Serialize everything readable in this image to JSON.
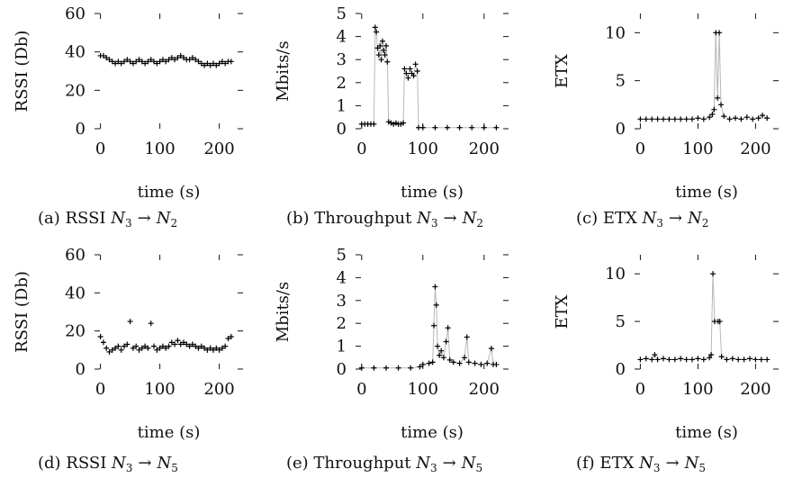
{
  "figure": {
    "panels": [
      {
        "id": "a",
        "caption_prefix": "(a) RSSI ",
        "caption_from": "N",
        "caption_from_sub": "3",
        "caption_arrow": "→",
        "caption_to": "N",
        "caption_to_sub": "2"
      },
      {
        "id": "b",
        "caption_prefix": "(b) Throughput ",
        "caption_from": "N",
        "caption_from_sub": "3",
        "caption_arrow": "→",
        "caption_to": "N",
        "caption_to_sub": "2"
      },
      {
        "id": "c",
        "caption_prefix": "(c) ETX ",
        "caption_from": "N",
        "caption_from_sub": "3",
        "caption_arrow": "→",
        "caption_to": "N",
        "caption_to_sub": "2"
      },
      {
        "id": "d",
        "caption_prefix": "(d) RSSI ",
        "caption_from": "N",
        "caption_from_sub": "3",
        "caption_arrow": "→",
        "caption_to": "N",
        "caption_to_sub": "5"
      },
      {
        "id": "e",
        "caption_prefix": "(e) Throughput ",
        "caption_from": "N",
        "caption_from_sub": "3",
        "caption_arrow": "→",
        "caption_to": "N",
        "caption_to_sub": "5"
      },
      {
        "id": "f",
        "caption_prefix": "(f) ETX ",
        "caption_from": "N",
        "caption_from_sub": "3",
        "caption_arrow": "→",
        "caption_to": "N",
        "caption_to_sub": "5"
      }
    ]
  },
  "chart_data": [
    {
      "type": "scatter",
      "xlabel": "time (s)",
      "ylabel": "RSSI (Db)",
      "xlim": [
        -10,
        240
      ],
      "ylim": [
        0,
        60
      ],
      "xticks": [
        0,
        100,
        200
      ],
      "yticks": [
        0,
        20,
        40,
        60
      ],
      "connected": false,
      "points": [
        [
          0,
          38
        ],
        [
          5,
          38
        ],
        [
          10,
          37
        ],
        [
          15,
          36
        ],
        [
          20,
          35
        ],
        [
          25,
          34
        ],
        [
          30,
          35
        ],
        [
          35,
          34
        ],
        [
          40,
          35
        ],
        [
          45,
          36
        ],
        [
          50,
          35
        ],
        [
          55,
          34
        ],
        [
          60,
          35
        ],
        [
          65,
          36
        ],
        [
          70,
          35
        ],
        [
          75,
          34
        ],
        [
          80,
          35
        ],
        [
          85,
          36
        ],
        [
          90,
          35
        ],
        [
          95,
          34
        ],
        [
          100,
          35
        ],
        [
          105,
          36
        ],
        [
          110,
          35
        ],
        [
          115,
          36
        ],
        [
          120,
          37
        ],
        [
          125,
          36
        ],
        [
          130,
          37
        ],
        [
          135,
          38
        ],
        [
          140,
          37
        ],
        [
          145,
          36
        ],
        [
          150,
          36
        ],
        [
          155,
          37
        ],
        [
          160,
          36
        ],
        [
          165,
          35
        ],
        [
          170,
          34
        ],
        [
          175,
          33
        ],
        [
          180,
          34
        ],
        [
          185,
          33
        ],
        [
          190,
          34
        ],
        [
          195,
          33
        ],
        [
          200,
          34
        ],
        [
          205,
          35
        ],
        [
          210,
          34
        ],
        [
          215,
          35
        ],
        [
          220,
          35
        ]
      ]
    },
    {
      "type": "line",
      "xlabel": "time (s)",
      "ylabel": "Mbits/s",
      "xlim": [
        -10,
        240
      ],
      "ylim": [
        0,
        5
      ],
      "xticks": [
        0,
        100,
        200
      ],
      "yticks": [
        0,
        1,
        2,
        3,
        4,
        5
      ],
      "connected": true,
      "points": [
        [
          0,
          0.2
        ],
        [
          5,
          0.2
        ],
        [
          10,
          0.2
        ],
        [
          15,
          0.2
        ],
        [
          20,
          0.2
        ],
        [
          22,
          4.4
        ],
        [
          24,
          4.2
        ],
        [
          26,
          3.5
        ],
        [
          28,
          3.2
        ],
        [
          30,
          3.6
        ],
        [
          32,
          3.0
        ],
        [
          34,
          3.8
        ],
        [
          36,
          3.4
        ],
        [
          38,
          3.2
        ],
        [
          40,
          3.6
        ],
        [
          42,
          2.9
        ],
        [
          44,
          0.3
        ],
        [
          48,
          0.25
        ],
        [
          52,
          0.2
        ],
        [
          56,
          0.25
        ],
        [
          60,
          0.2
        ],
        [
          64,
          0.2
        ],
        [
          68,
          0.25
        ],
        [
          70,
          2.6
        ],
        [
          73,
          2.4
        ],
        [
          76,
          2.2
        ],
        [
          79,
          2.6
        ],
        [
          82,
          2.4
        ],
        [
          85,
          2.3
        ],
        [
          88,
          2.8
        ],
        [
          91,
          2.5
        ],
        [
          93,
          0.05
        ],
        [
          100,
          0.05
        ],
        [
          120,
          0.05
        ],
        [
          140,
          0.05
        ],
        [
          160,
          0.05
        ],
        [
          180,
          0.05
        ],
        [
          200,
          0.05
        ],
        [
          220,
          0.05
        ]
      ]
    },
    {
      "type": "line",
      "xlabel": "time (s)",
      "ylabel": "ETX",
      "xlim": [
        -10,
        240
      ],
      "ylim": [
        0,
        12
      ],
      "xticks": [
        0,
        100,
        200
      ],
      "yticks": [
        0,
        5,
        10
      ],
      "connected": true,
      "points": [
        [
          0,
          1
        ],
        [
          10,
          1
        ],
        [
          20,
          1
        ],
        [
          30,
          1
        ],
        [
          40,
          1
        ],
        [
          50,
          1
        ],
        [
          60,
          1
        ],
        [
          70,
          1
        ],
        [
          80,
          1
        ],
        [
          90,
          1
        ],
        [
          100,
          1.1
        ],
        [
          110,
          1
        ],
        [
          120,
          1.2
        ],
        [
          125,
          1.5
        ],
        [
          128,
          2
        ],
        [
          131,
          10
        ],
        [
          134,
          3.2
        ],
        [
          137,
          10
        ],
        [
          140,
          2.5
        ],
        [
          145,
          1.3
        ],
        [
          155,
          1
        ],
        [
          165,
          1.1
        ],
        [
          175,
          1
        ],
        [
          185,
          1.2
        ],
        [
          195,
          1
        ],
        [
          205,
          1.1
        ],
        [
          212,
          1.4
        ],
        [
          220,
          1.1
        ]
      ]
    },
    {
      "type": "scatter",
      "xlabel": "time (s)",
      "ylabel": "RSSI (Db)",
      "xlim": [
        -10,
        240
      ],
      "ylim": [
        0,
        60
      ],
      "xticks": [
        0,
        100,
        200
      ],
      "yticks": [
        0,
        20,
        40,
        60
      ],
      "connected": false,
      "points": [
        [
          0,
          17
        ],
        [
          5,
          14
        ],
        [
          10,
          11
        ],
        [
          15,
          9
        ],
        [
          20,
          10
        ],
        [
          25,
          11
        ],
        [
          30,
          12
        ],
        [
          35,
          10
        ],
        [
          40,
          12
        ],
        [
          45,
          13
        ],
        [
          50,
          25
        ],
        [
          55,
          11
        ],
        [
          60,
          12
        ],
        [
          65,
          10
        ],
        [
          70,
          11
        ],
        [
          75,
          12
        ],
        [
          80,
          11
        ],
        [
          85,
          24
        ],
        [
          90,
          12
        ],
        [
          95,
          10
        ],
        [
          100,
          11
        ],
        [
          105,
          12
        ],
        [
          110,
          11
        ],
        [
          115,
          12
        ],
        [
          120,
          14
        ],
        [
          125,
          13
        ],
        [
          130,
          15
        ],
        [
          135,
          13
        ],
        [
          140,
          14
        ],
        [
          145,
          13
        ],
        [
          150,
          12
        ],
        [
          155,
          13
        ],
        [
          160,
          12
        ],
        [
          165,
          11
        ],
        [
          170,
          12
        ],
        [
          175,
          11
        ],
        [
          180,
          10
        ],
        [
          185,
          11
        ],
        [
          190,
          10
        ],
        [
          195,
          11
        ],
        [
          200,
          10
        ],
        [
          205,
          11
        ],
        [
          210,
          12
        ],
        [
          215,
          16
        ],
        [
          220,
          17
        ]
      ]
    },
    {
      "type": "line",
      "xlabel": "time (s)",
      "ylabel": "Mbits/s",
      "xlim": [
        -10,
        240
      ],
      "ylim": [
        0,
        5
      ],
      "xticks": [
        0,
        100,
        200
      ],
      "yticks": [
        0,
        1,
        2,
        3,
        4,
        5
      ],
      "connected": true,
      "points": [
        [
          0,
          0.05
        ],
        [
          20,
          0.05
        ],
        [
          40,
          0.05
        ],
        [
          60,
          0.05
        ],
        [
          80,
          0.05
        ],
        [
          95,
          0.1
        ],
        [
          100,
          0.2
        ],
        [
          110,
          0.25
        ],
        [
          116,
          0.3
        ],
        [
          118,
          1.9
        ],
        [
          120,
          3.6
        ],
        [
          122,
          2.8
        ],
        [
          124,
          1.0
        ],
        [
          127,
          0.6
        ],
        [
          130,
          0.8
        ],
        [
          134,
          0.5
        ],
        [
          138,
          1.2
        ],
        [
          141,
          1.8
        ],
        [
          144,
          0.4
        ],
        [
          150,
          0.3
        ],
        [
          160,
          0.25
        ],
        [
          168,
          0.5
        ],
        [
          172,
          1.4
        ],
        [
          175,
          0.3
        ],
        [
          185,
          0.25
        ],
        [
          195,
          0.2
        ],
        [
          205,
          0.25
        ],
        [
          212,
          0.9
        ],
        [
          215,
          0.2
        ],
        [
          220,
          0.2
        ]
      ]
    },
    {
      "type": "line",
      "xlabel": "time (s)",
      "ylabel": "ETX",
      "xlim": [
        -10,
        240
      ],
      "ylim": [
        0,
        12
      ],
      "xticks": [
        0,
        100,
        200
      ],
      "yticks": [
        0,
        5,
        10
      ],
      "connected": true,
      "points": [
        [
          0,
          1
        ],
        [
          10,
          1.1
        ],
        [
          20,
          1
        ],
        [
          25,
          1.5
        ],
        [
          30,
          1
        ],
        [
          40,
          1.1
        ],
        [
          50,
          1
        ],
        [
          60,
          1
        ],
        [
          70,
          1.1
        ],
        [
          80,
          1
        ],
        [
          90,
          1
        ],
        [
          100,
          1.1
        ],
        [
          110,
          1
        ],
        [
          120,
          1.2
        ],
        [
          123,
          1.5
        ],
        [
          126,
          10
        ],
        [
          129,
          5
        ],
        [
          135,
          5
        ],
        [
          138,
          5
        ],
        [
          141,
          1.3
        ],
        [
          150,
          1
        ],
        [
          160,
          1.1
        ],
        [
          170,
          1
        ],
        [
          180,
          1
        ],
        [
          190,
          1.1
        ],
        [
          200,
          1
        ],
        [
          210,
          1
        ],
        [
          220,
          1
        ]
      ]
    }
  ]
}
